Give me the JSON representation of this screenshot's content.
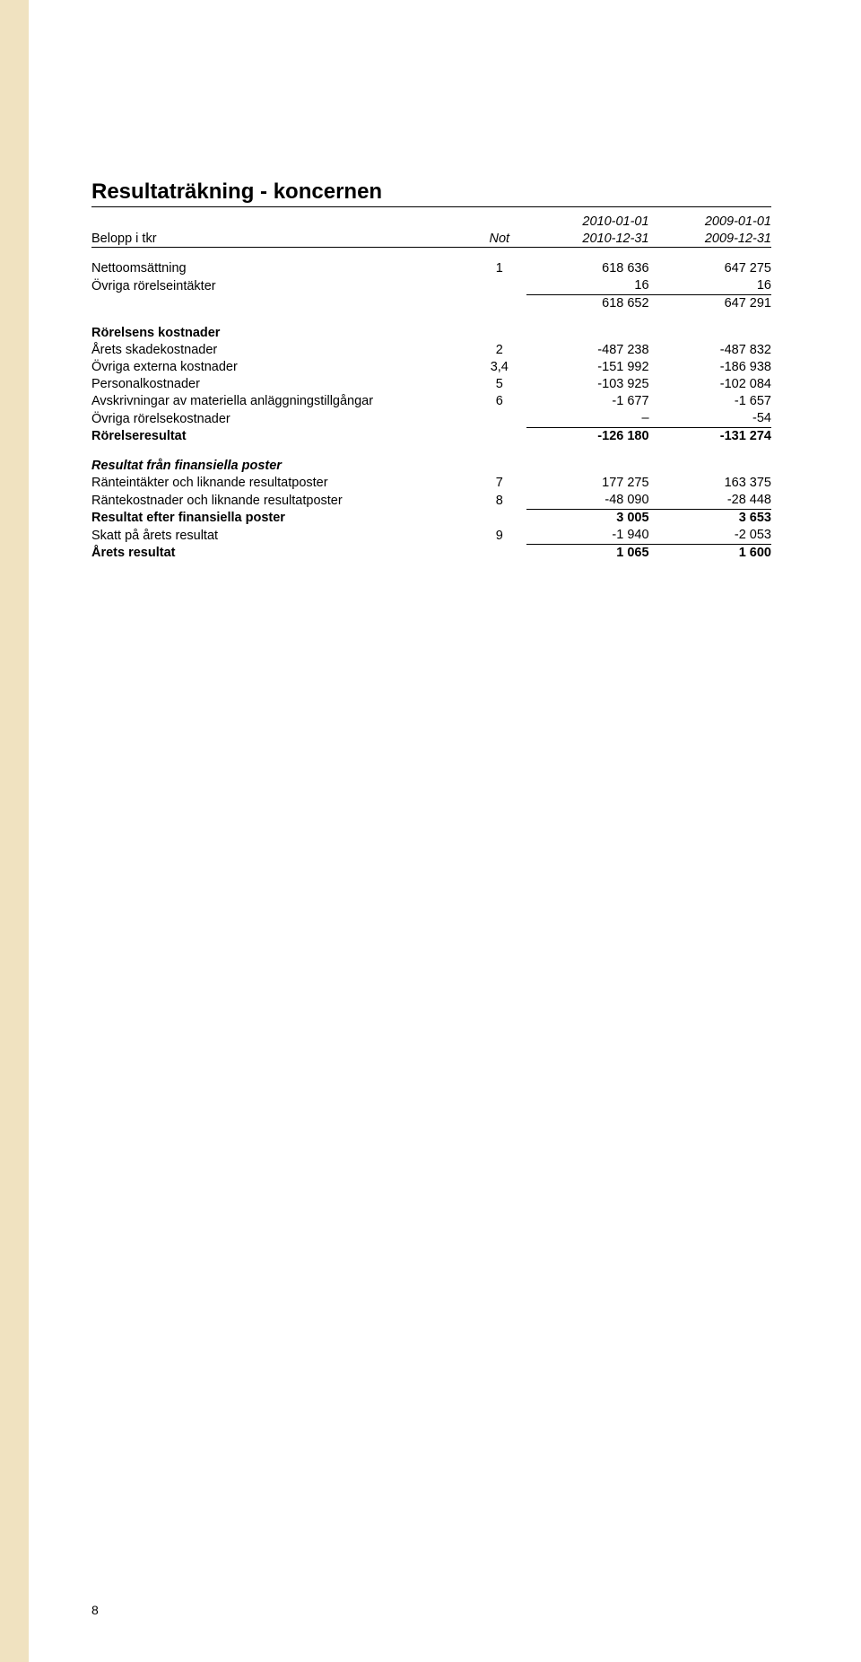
{
  "title": "Resultaträkning - koncernen",
  "header": {
    "belopp_label": "Belopp i tkr",
    "not_label": "Not",
    "period1_from": "2010-01-01",
    "period1_to": "2010-12-31",
    "period2_from": "2009-01-01",
    "period2_to": "2009-12-31"
  },
  "rows": [
    {
      "type": "line",
      "label": "Nettoomsättning",
      "not": "1",
      "y1": "618 636",
      "y2": "647 275"
    },
    {
      "type": "line",
      "label": "Övriga rörelseintäkter",
      "not": "",
      "y1": "16",
      "y2": "16",
      "ul_num": true
    },
    {
      "type": "line",
      "label": "",
      "not": "",
      "y1": "618 652",
      "y2": "647 291"
    },
    {
      "type": "spacer"
    },
    {
      "type": "header",
      "label": "Rörelsens kostnader"
    },
    {
      "type": "line",
      "label": "Årets skadekostnader",
      "not": "2",
      "y1": "-487 238",
      "y2": "-487 832"
    },
    {
      "type": "line",
      "label": "Övriga externa kostnader",
      "not": "3,4",
      "y1": "-151 992",
      "y2": "-186 938"
    },
    {
      "type": "line",
      "label": "Personalkostnader",
      "not": "5",
      "y1": "-103 925",
      "y2": "-102 084"
    },
    {
      "type": "line",
      "label": "Avskrivningar av materiella anläggningstillgångar",
      "not": "6",
      "y1": "-1 677",
      "y2": "-1 657"
    },
    {
      "type": "line",
      "label": "Övriga rörelsekostnader",
      "not": "",
      "y1": "–",
      "y2": "-54",
      "ul_num": true
    },
    {
      "type": "line",
      "label": "Rörelseresultat",
      "not": "",
      "y1": "-126 180",
      "y2": "-131 274",
      "bold": true
    },
    {
      "type": "spacer"
    },
    {
      "type": "header",
      "label": "Resultat från finansiella poster",
      "italic": true
    },
    {
      "type": "line",
      "label": "Ränteintäkter och liknande resultatposter",
      "not": "7",
      "y1": "177 275",
      "y2": "163 375"
    },
    {
      "type": "line",
      "label": "Räntekostnader och liknande resultatposter",
      "not": "8",
      "y1": "-48 090",
      "y2": "-28 448",
      "ul_num": true
    },
    {
      "type": "line",
      "label": "Resultat efter finansiella poster",
      "not": "",
      "y1": "3 005",
      "y2": "3 653",
      "bold": true
    },
    {
      "type": "line",
      "label": "Skatt på årets resultat",
      "not": "9",
      "y1": "-1 940",
      "y2": "-2 053",
      "ul_num": true
    },
    {
      "type": "line",
      "label": "Årets resultat",
      "not": "",
      "y1": "1 065",
      "y2": "1 600",
      "bold": true
    }
  ],
  "page_number": "8"
}
